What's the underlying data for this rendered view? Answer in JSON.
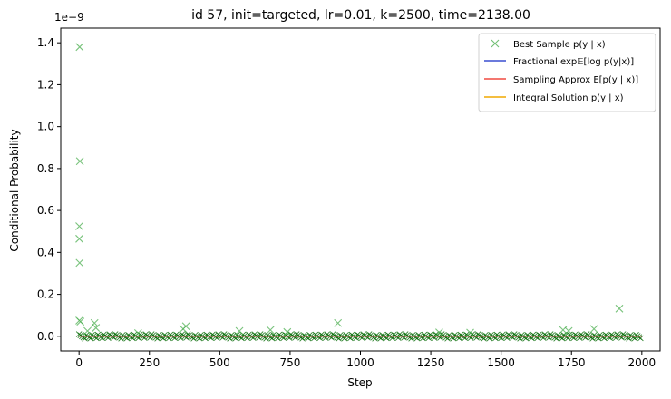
{
  "chart_data": {
    "type": "scatter",
    "title": "id 57, init=targeted, lr=0.01, k=2500, time=2138.00",
    "xlabel": "Step",
    "ylabel": "Conditional Probability",
    "y_scale_note": "1e−9",
    "xlim": [
      -65,
      2065
    ],
    "ylim": [
      -0.07,
      1.47
    ],
    "xticks": [
      0,
      250,
      500,
      750,
      1000,
      1250,
      1500,
      1750,
      2000
    ],
    "yticks": [
      0.0,
      0.2,
      0.4,
      0.6,
      0.8,
      1.0,
      1.2,
      1.4
    ],
    "ytick_labels": [
      "0.0",
      "0.2",
      "0.4",
      "0.6",
      "0.8",
      "1.0",
      "1.2",
      "1.4"
    ],
    "grid": false,
    "legend_position": "top-right",
    "colors": {
      "samples": "#4caf50",
      "fractional": "#3a4fd0",
      "sampling": "#f04a40",
      "integral": "#f0a800",
      "band": "#0a6e0a"
    },
    "series": [
      {
        "name": "Best Sample p(y | x)",
        "marker": "x",
        "note": "dense band of near-zero markers across all 2000 steps plus visible outliers",
        "band_x_range": [
          0,
          2000
        ],
        "band_value": 0.0,
        "outliers": [
          {
            "x": 2,
            "y": 1.38
          },
          {
            "x": 3,
            "y": 0.835
          },
          {
            "x": 1,
            "y": 0.525
          },
          {
            "x": 1,
            "y": 0.465
          },
          {
            "x": 2,
            "y": 0.35
          },
          {
            "x": 1,
            "y": 0.075
          },
          {
            "x": 5,
            "y": 0.07
          },
          {
            "x": 55,
            "y": 0.063
          },
          {
            "x": 60,
            "y": 0.04
          },
          {
            "x": 30,
            "y": 0.025
          },
          {
            "x": 210,
            "y": 0.015
          },
          {
            "x": 370,
            "y": 0.035
          },
          {
            "x": 380,
            "y": 0.048
          },
          {
            "x": 570,
            "y": 0.025
          },
          {
            "x": 680,
            "y": 0.03
          },
          {
            "x": 740,
            "y": 0.02
          },
          {
            "x": 920,
            "y": 0.063
          },
          {
            "x": 1280,
            "y": 0.018
          },
          {
            "x": 1390,
            "y": 0.017
          },
          {
            "x": 1720,
            "y": 0.03
          },
          {
            "x": 1740,
            "y": 0.025
          },
          {
            "x": 1830,
            "y": 0.035
          },
          {
            "x": 1920,
            "y": 0.132
          }
        ]
      },
      {
        "name": "Fractional exp𝔼[log p(y|x)]",
        "type": "line",
        "x": [
          0,
          2000
        ],
        "y": [
          0.0,
          0.0
        ]
      },
      {
        "name": "Sampling Approx E[p(y | x)]",
        "type": "line",
        "x": [
          0,
          2000
        ],
        "y": [
          0.0,
          0.0
        ]
      },
      {
        "name": "Integral Solution p(y | x)",
        "type": "line",
        "x": [
          0,
          2000
        ],
        "y": [
          0.0,
          0.0
        ]
      }
    ]
  }
}
